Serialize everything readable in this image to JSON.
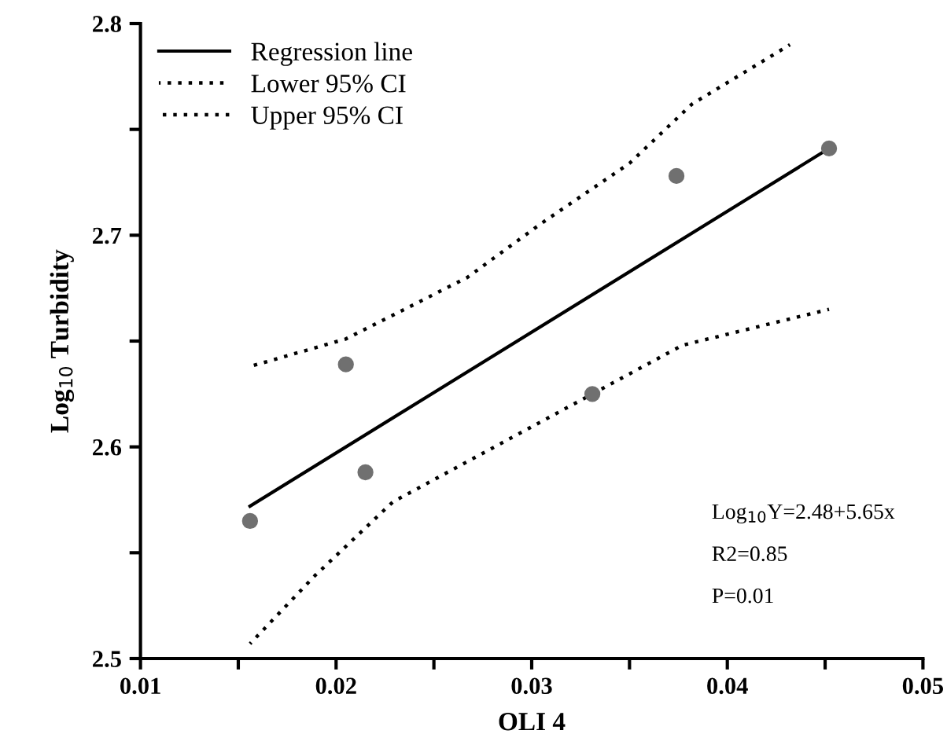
{
  "chart_data": {
    "type": "line",
    "xlabel": "OLI 4",
    "ylabel": "Log$_{10}$ Turbidity",
    "xlim": [
      0.01,
      0.05
    ],
    "ylim": [
      2.5,
      2.8
    ],
    "xticks": [
      0.01,
      {
        "value": 0.015,
        "label": null
      },
      0.02,
      {
        "value": 0.025,
        "label": null
      },
      0.03,
      {
        "value": 0.035,
        "label": null
      },
      0.04,
      {
        "value": 0.045,
        "label": null
      },
      0.05
    ],
    "yticks": [
      2.5,
      {
        "value": 2.55,
        "label": null
      },
      2.6,
      {
        "value": 2.65,
        "label": null
      },
      2.7,
      {
        "value": 2.75,
        "label": null
      },
      2.8
    ],
    "grid": false,
    "legend": "top left",
    "series": [
      {
        "type": "scatter",
        "color": "#707070",
        "marker": "circle",
        "x": [
          0.0156,
          0.0205,
          0.0215,
          0.0331,
          0.0374,
          0.0452
        ],
        "values": [
          2.565,
          2.639,
          2.588,
          2.625,
          2.728,
          2.741
        ]
      },
      {
        "name": "Regression line",
        "color": "#000000",
        "line_style": "solid",
        "marker": "none",
        "x": [
          0.0156,
          0.0452
        ],
        "values": [
          2.572,
          2.741
        ]
      },
      {
        "name": "Lower 95% CI",
        "color": "#000000",
        "line_style": "dotted",
        "marker": "none",
        "x": [
          0.0156,
          0.0189,
          0.0229,
          0.0267,
          0.0331,
          0.0377,
          0.0452
        ],
        "values": [
          2.507,
          2.539,
          2.574,
          2.593,
          2.625,
          2.648,
          2.665
        ]
      },
      {
        "name": "Upper 95% CI",
        "color": "#000000",
        "line_style": "dotted",
        "marker": "none",
        "x": [
          0.0156,
          0.0205,
          0.0267,
          0.0304,
          0.035,
          0.0382,
          0.0432
        ],
        "values": [
          2.638,
          2.651,
          2.68,
          2.705,
          2.734,
          2.762,
          2.79
        ]
      }
    ],
    "annotations": [
      "Log$_{10}$Y=2.48+5.65x",
      "R2=0.85",
      "P=0.01"
    ]
  }
}
